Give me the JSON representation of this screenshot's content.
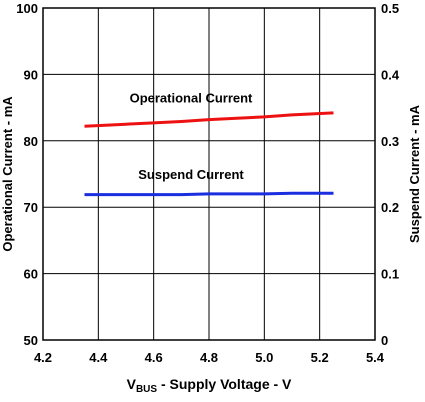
{
  "chart_data": {
    "type": "line",
    "x": [
      4.35,
      4.5,
      4.6,
      4.7,
      4.8,
      4.9,
      5.0,
      5.1,
      5.25
    ],
    "xlim": [
      4.2,
      5.4
    ],
    "x_ticks": [
      "4.2",
      "4.4",
      "4.6",
      "4.8",
      "5.0",
      "5.2",
      "5.4"
    ],
    "xlabel": {
      "main": "V",
      "sub": "BUS",
      "rest": " - Supply Voltage - V"
    },
    "y_left": {
      "label": "Operational Current - mA",
      "lim": [
        50,
        100
      ],
      "ticks": [
        "50",
        "60",
        "70",
        "80",
        "90",
        "100"
      ]
    },
    "y_right": {
      "label": "Suspend Current - mA",
      "lim": [
        0,
        0.5
      ],
      "ticks": [
        "0",
        "0.1",
        "0.2",
        "0.3",
        "0.4",
        "0.5"
      ]
    },
    "grid": true,
    "series": [
      {
        "name": "Operational Current",
        "axis": "left",
        "color": "#ee1111",
        "values": [
          82.2,
          82.5,
          82.7,
          82.9,
          83.2,
          83.4,
          83.6,
          83.9,
          84.2
        ]
      },
      {
        "name": "Suspend Current",
        "axis": "right",
        "color": "#1a2ee0",
        "values": [
          0.219,
          0.219,
          0.219,
          0.219,
          0.22,
          0.22,
          0.22,
          0.221,
          0.221
        ]
      }
    ]
  }
}
